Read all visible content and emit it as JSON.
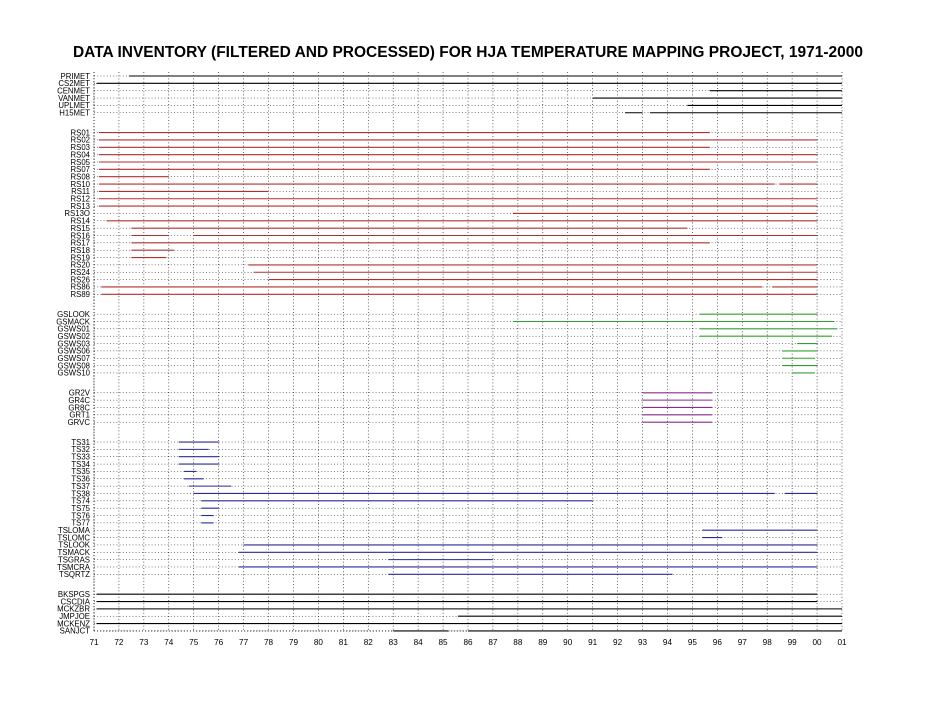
{
  "chart_data": {
    "type": "timeline",
    "title": "DATA INVENTORY (FILTERED AND PROCESSED) FOR HJA TEMPERATURE MAPPING PROJECT, 1971-2000",
    "xlabel": "",
    "ylabel": "",
    "x_ticks": [
      "71",
      "72",
      "73",
      "74",
      "75",
      "76",
      "77",
      "78",
      "79",
      "80",
      "81",
      "82",
      "83",
      "84",
      "85",
      "86",
      "87",
      "88",
      "89",
      "90",
      "91",
      "92",
      "93",
      "94",
      "95",
      "96",
      "97",
      "98",
      "99",
      "00",
      "01"
    ],
    "xlim": [
      1971,
      2001
    ],
    "grid": true,
    "colors": {
      "met": "#000000",
      "rs": "#b03030",
      "gs": "#30a030",
      "gr": "#8a2a8a",
      "ts": "#2a2a9a",
      "other": "#000000"
    },
    "groups": [
      {
        "color_key": "met",
        "stations": [
          {
            "name": "PRIMET",
            "periods": [
              [
                1972.4,
                2001
              ]
            ]
          },
          {
            "name": "CS2MET",
            "periods": [
              [
                1971.1,
                2001
              ]
            ]
          },
          {
            "name": "CENMET",
            "periods": [
              [
                1995.7,
                2001
              ]
            ]
          },
          {
            "name": "VANMET",
            "periods": [
              [
                1991.0,
                2001
              ]
            ]
          },
          {
            "name": "UPLMET",
            "periods": [
              [
                1994.8,
                2001
              ]
            ]
          },
          {
            "name": "H15MET",
            "periods": [
              [
                1992.3,
                1993.0
              ],
              [
                1993.3,
                2001
              ]
            ]
          }
        ]
      },
      {
        "color_key": "rs",
        "stations": [
          {
            "name": "RS01",
            "periods": [
              [
                1971.2,
                1995.7
              ]
            ]
          },
          {
            "name": "RS02",
            "periods": [
              [
                1971.2,
                2000.0
              ]
            ]
          },
          {
            "name": "RS03",
            "periods": [
              [
                1971.2,
                1995.7
              ]
            ]
          },
          {
            "name": "RS04",
            "periods": [
              [
                1971.2,
                2000.0
              ]
            ]
          },
          {
            "name": "RS05",
            "periods": [
              [
                1971.2,
                2000.0
              ]
            ]
          },
          {
            "name": "RS07",
            "periods": [
              [
                1971.2,
                1995.7
              ]
            ]
          },
          {
            "name": "RS08",
            "periods": [
              [
                1971.2,
                1974.0
              ]
            ]
          },
          {
            "name": "RS10",
            "periods": [
              [
                1971.2,
                1998.3
              ],
              [
                1998.5,
                2000.0
              ]
            ]
          },
          {
            "name": "RS11",
            "periods": [
              [
                1971.2,
                1978.0
              ]
            ]
          },
          {
            "name": "RS12",
            "periods": [
              [
                1971.2,
                2000.0
              ]
            ]
          },
          {
            "name": "RS13",
            "periods": [
              [
                1971.2,
                2000.0
              ]
            ]
          },
          {
            "name": "RS13O",
            "periods": [
              [
                1987.8,
                2000.0
              ]
            ]
          },
          {
            "name": "RS14",
            "periods": [
              [
                1971.5,
                2000.0
              ]
            ]
          },
          {
            "name": "RS15",
            "periods": [
              [
                1972.5,
                1974.0
              ],
              [
                1974.0,
                1994.8
              ]
            ]
          },
          {
            "name": "RS16",
            "periods": [
              [
                1972.5,
                1974.0
              ],
              [
                1975.0,
                2000.0
              ]
            ]
          },
          {
            "name": "RS17",
            "periods": [
              [
                1972.5,
                1995.7
              ]
            ]
          },
          {
            "name": "RS18",
            "periods": [
              [
                1972.5,
                1974.2
              ]
            ]
          },
          {
            "name": "RS19",
            "periods": [
              [
                1972.5,
                1973.9
              ]
            ]
          },
          {
            "name": "RS20",
            "periods": [
              [
                1977.2,
                2000.0
              ]
            ]
          },
          {
            "name": "RS24",
            "periods": [
              [
                1977.4,
                2000.0
              ]
            ]
          },
          {
            "name": "RS26",
            "periods": [
              [
                1978.0,
                2000.0
              ]
            ]
          },
          {
            "name": "RS86",
            "periods": [
              [
                1971.3,
                1997.8
              ],
              [
                1998.2,
                2000.0
              ]
            ]
          },
          {
            "name": "RS89",
            "periods": [
              [
                1971.3,
                2000.0
              ]
            ]
          }
        ]
      },
      {
        "color_key": "gs",
        "stations": [
          {
            "name": "GSLOOK",
            "periods": [
              [
                1995.3,
                2000.0
              ]
            ]
          },
          {
            "name": "GSMACK",
            "periods": [
              [
                1987.8,
                2000.7
              ]
            ]
          },
          {
            "name": "GSWS01",
            "periods": [
              [
                1995.3,
                2000.8
              ]
            ]
          },
          {
            "name": "GSWS02",
            "periods": [
              [
                1995.3,
                2000.6
              ]
            ]
          },
          {
            "name": "GSWS03",
            "periods": [
              [
                1999.2,
                2000.0
              ]
            ]
          },
          {
            "name": "GSWS06",
            "periods": [
              [
                1998.6,
                2000.0
              ]
            ]
          },
          {
            "name": "GSWS07",
            "periods": [
              [
                1998.6,
                1999.9
              ]
            ]
          },
          {
            "name": "GSWS08",
            "periods": [
              [
                1998.6,
                2000.0
              ]
            ]
          },
          {
            "name": "GSWS10",
            "periods": [
              [
                1999.0,
                1999.9
              ]
            ]
          }
        ]
      },
      {
        "color_key": "gr",
        "stations": [
          {
            "name": "GR2V",
            "periods": [
              [
                1993.0,
                1995.8
              ]
            ]
          },
          {
            "name": "GR4C",
            "periods": [
              [
                1993.0,
                1995.8
              ]
            ]
          },
          {
            "name": "GR8C",
            "periods": [
              [
                1993.0,
                1995.8
              ]
            ]
          },
          {
            "name": "GRT1",
            "periods": [
              [
                1993.0,
                1995.8
              ]
            ]
          },
          {
            "name": "GRVC",
            "periods": [
              [
                1993.0,
                1995.8
              ]
            ]
          }
        ]
      },
      {
        "color_key": "ts",
        "stations": [
          {
            "name": "TS31",
            "periods": [
              [
                1974.4,
                1976.0
              ]
            ]
          },
          {
            "name": "TS32",
            "periods": [
              [
                1974.4,
                1975.6
              ]
            ]
          },
          {
            "name": "TS33",
            "periods": [
              [
                1974.4,
                1976.0
              ]
            ]
          },
          {
            "name": "TS34",
            "periods": [
              [
                1974.4,
                1976.0
              ]
            ]
          },
          {
            "name": "TS35",
            "periods": [
              [
                1974.6,
                1975.1
              ]
            ]
          },
          {
            "name": "TS36",
            "periods": [
              [
                1974.6,
                1975.4
              ]
            ]
          },
          {
            "name": "TS37",
            "periods": [
              [
                1974.8,
                1976.5
              ]
            ]
          },
          {
            "name": "TS38",
            "periods": [
              [
                1975.0,
                1998.3
              ],
              [
                1998.7,
                2000.0
              ]
            ]
          },
          {
            "name": "TS74",
            "periods": [
              [
                1975.3,
                1991.0
              ]
            ]
          },
          {
            "name": "TS75",
            "periods": [
              [
                1975.3,
                1976.0
              ]
            ]
          },
          {
            "name": "TS76",
            "periods": [
              [
                1975.3,
                1975.8
              ]
            ]
          },
          {
            "name": "TS77",
            "periods": [
              [
                1975.3,
                1975.8
              ]
            ]
          },
          {
            "name": "TSLOMA",
            "periods": [
              [
                1995.4,
                2000.0
              ]
            ]
          },
          {
            "name": "TSLOMC",
            "periods": [
              [
                1995.4,
                1996.2
              ]
            ]
          },
          {
            "name": "TSLOOK",
            "periods": [
              [
                1977.0,
                2000.0
              ]
            ]
          },
          {
            "name": "TSMACK",
            "periods": [
              [
                1976.8,
                2000.0
              ]
            ]
          },
          {
            "name": "TSGRAS",
            "periods": [
              [
                1982.8,
                1987.0
              ]
            ]
          },
          {
            "name": "TSMCRA",
            "periods": [
              [
                1976.8,
                2000.0
              ]
            ]
          },
          {
            "name": "TSQRTZ",
            "periods": [
              [
                1982.8,
                1994.2
              ]
            ]
          }
        ]
      },
      {
        "color_key": "other",
        "stations": [
          {
            "name": "BKSPGS",
            "periods": [
              [
                1971.1,
                2000.0
              ]
            ]
          },
          {
            "name": "CSCDIA",
            "periods": [
              [
                1971.1,
                2000.0
              ]
            ]
          },
          {
            "name": "MCKZBR",
            "periods": [
              [
                1971.1,
                2001
              ]
            ]
          },
          {
            "name": "JMPJOE",
            "periods": [
              [
                1985.6,
                2001
              ]
            ]
          },
          {
            "name": "MCKENZ",
            "periods": [
              [
                1971.1,
                2001
              ]
            ]
          },
          {
            "name": "SANJCT",
            "periods": [
              [
                1983.0,
                1985.2
              ],
              [
                1986.0,
                2001
              ]
            ]
          }
        ]
      }
    ]
  }
}
